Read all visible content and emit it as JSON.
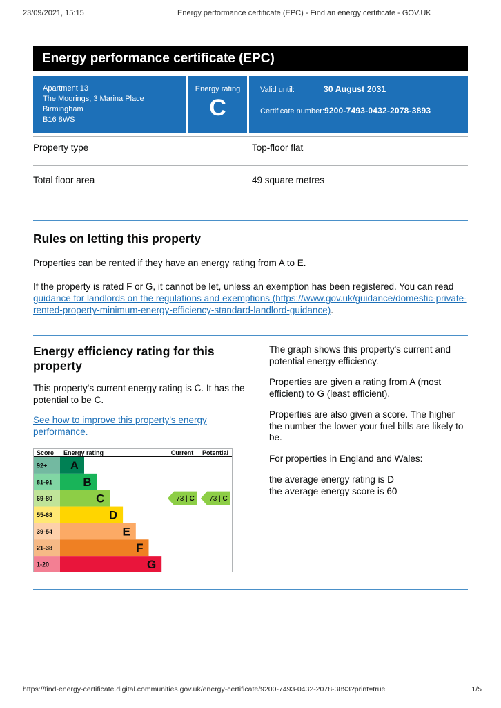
{
  "colors": {
    "accent_blue": "#1d70b8",
    "rule_blue": "#4a90c9",
    "divider_gray": "#b1b4b6",
    "ink": "#0b0c0c"
  },
  "print_header": {
    "datetime": "23/09/2021, 15:15",
    "title": "Energy performance certificate (EPC) - Find an energy certificate - GOV.UK"
  },
  "banner": {
    "title": "Energy performance certificate (EPC)"
  },
  "certificate_box": {
    "address_lines": [
      "Apartment 13",
      "The Moorings, 3 Marina Place",
      "Birmingham",
      "B16 8WS"
    ],
    "energy_rating_label": "Energy rating",
    "energy_rating": "C",
    "valid_until_label": "Valid until:",
    "valid_until": "30 August 2031",
    "certificate_number_label": "Certificate number:",
    "certificate_number": "9200-7493-0432-2078-3893"
  },
  "property_details": {
    "rows": [
      {
        "label": "Property type",
        "value": "Top-floor flat"
      },
      {
        "label": "Total floor area",
        "value": "49 square metres"
      }
    ]
  },
  "rules_section": {
    "heading": "Rules on letting this property",
    "paragraph1": "Properties can be rented if they have an energy rating from A to E.",
    "paragraph2_prefix": "If the property is rated F or G, it cannot be let, unless an exemption has been registered. You can read",
    "link_text": "guidance for landlords on the regulations and exemptions (https://www.gov.uk/guidance/domestic-private-rented-property-minimum-energy-efficiency-standard-landlord-guidance)",
    "paragraph2_suffix": "."
  },
  "rating_section": {
    "heading": "Energy efficiency rating for this property",
    "paragraph": "This property's current energy rating is C. It has the potential to be C.",
    "improve_link_text": "See how to improve this property's energy performance.",
    "right_paragraphs": [
      "The graph shows this property's current and potential energy efficiency.",
      "Properties are given a rating from A (most efficient) to G (least efficient).",
      "Properties are also given a score. The higher the number the lower your fuel bills are likely to be.",
      "For properties in England and Wales:"
    ],
    "average_lines": [
      "the average energy rating is D",
      "the average energy score is 60"
    ]
  },
  "chart_data": {
    "type": "bar",
    "columns": [
      "Score",
      "Energy rating",
      "Current",
      "Potential"
    ],
    "bands": [
      {
        "range": "92+",
        "letter": "A",
        "color": "#008054"
      },
      {
        "range": "81-91",
        "letter": "B",
        "color": "#19b459"
      },
      {
        "range": "69-80",
        "letter": "C",
        "color": "#8dce46"
      },
      {
        "range": "55-68",
        "letter": "D",
        "color": "#ffd500"
      },
      {
        "range": "39-54",
        "letter": "E",
        "color": "#fcaa65"
      },
      {
        "range": "21-38",
        "letter": "F",
        "color": "#ef8023"
      },
      {
        "range": "1-20",
        "letter": "G",
        "color": "#e9153b"
      }
    ],
    "current": {
      "score": 73,
      "rating": "C"
    },
    "potential": {
      "score": 73,
      "rating": "C"
    }
  },
  "footer": {
    "url": "https://find-energy-certificate.digital.communities.gov.uk/energy-certificate/9200-7493-0432-2078-3893?print=true",
    "page": "1/5"
  }
}
